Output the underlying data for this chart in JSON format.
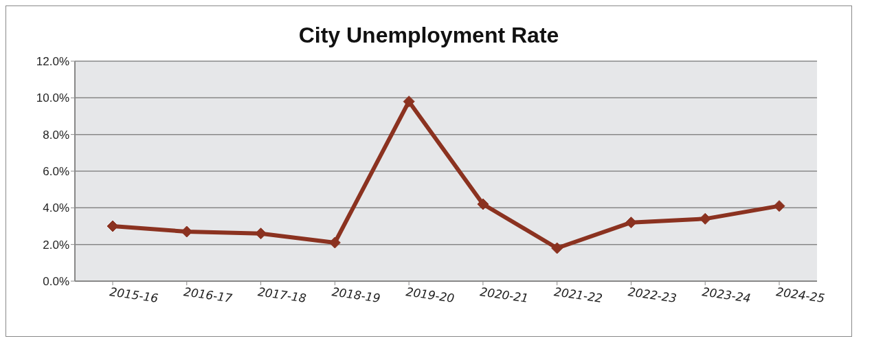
{
  "chart_data": {
    "type": "line",
    "title": "City Unemployment Rate",
    "categories": [
      "2015-16",
      "2016-17",
      "2017-18",
      "2018-19",
      "2019-20",
      "2020-21",
      "2021-22",
      "2022-23",
      "2023-24",
      "2024-25"
    ],
    "series": [
      {
        "color": "#8b3220",
        "values": [
          3.0,
          2.7,
          2.6,
          2.1,
          9.8,
          4.2,
          1.8,
          3.2,
          3.4,
          4.1
        ]
      }
    ],
    "ylim": [
      0,
      12
    ],
    "yticks": [
      {
        "value": 0,
        "label": "0.0%"
      },
      {
        "value": 2,
        "label": "2.0%"
      },
      {
        "value": 4,
        "label": "4.0%"
      },
      {
        "value": 6,
        "label": "6.0%"
      },
      {
        "value": 8,
        "label": "8.0%"
      },
      {
        "value": 10,
        "label": "10.0%"
      },
      {
        "value": 12,
        "label": "12.0%"
      }
    ],
    "grid": "y",
    "legend": false,
    "marker": "diamond",
    "line_style": "solid"
  }
}
